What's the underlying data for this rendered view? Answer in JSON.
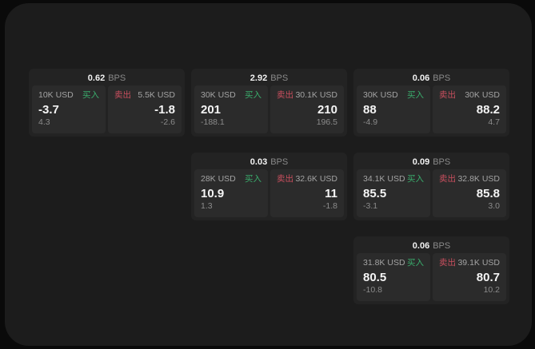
{
  "labels": {
    "bps": "BPS",
    "buy": "买入",
    "sell": "卖出"
  },
  "colors": {
    "page_bg": "#0a0a0a",
    "panel_bg": "#1c1c1c",
    "card_bg": "#232323",
    "tile_bg": "#2b2b2b",
    "buy_green": "#3aac6c",
    "sell_red": "#c94f5e",
    "value_text": "#f5f5f5",
    "muted_text": "#a3a3a3",
    "dim_text": "#8b8b8b"
  },
  "cards": [
    {
      "bps": "0.62",
      "buy": {
        "amount": "10K USD",
        "value": "-3.7",
        "delta": "4.3"
      },
      "sell": {
        "amount": "5.5K USD",
        "value": "-1.8",
        "delta": "-2.6"
      }
    },
    {
      "bps": "2.92",
      "buy": {
        "amount": "30K USD",
        "value": "201",
        "delta": "-188.1"
      },
      "sell": {
        "amount": "30.1K USD",
        "value": "210",
        "delta": "196.5"
      }
    },
    {
      "bps": "0.06",
      "buy": {
        "amount": "30K USD",
        "value": "88",
        "delta": "-4.9"
      },
      "sell": {
        "amount": "30K USD",
        "value": "88.2",
        "delta": "4.7"
      }
    },
    {
      "bps": "0.03",
      "buy": {
        "amount": "28K USD",
        "value": "10.9",
        "delta": "1.3"
      },
      "sell": {
        "amount": "32.6K USD",
        "value": "11",
        "delta": "-1.8"
      }
    },
    {
      "bps": "0.09",
      "buy": {
        "amount": "34.1K USD",
        "value": "85.5",
        "delta": "-3.1"
      },
      "sell": {
        "amount": "32.8K USD",
        "value": "85.8",
        "delta": "3.0"
      }
    },
    {
      "bps": "0.06",
      "buy": {
        "amount": "31.8K USD",
        "value": "80.5",
        "delta": "-10.8"
      },
      "sell": {
        "amount": "39.1K USD",
        "value": "80.7",
        "delta": "10.2"
      }
    }
  ]
}
